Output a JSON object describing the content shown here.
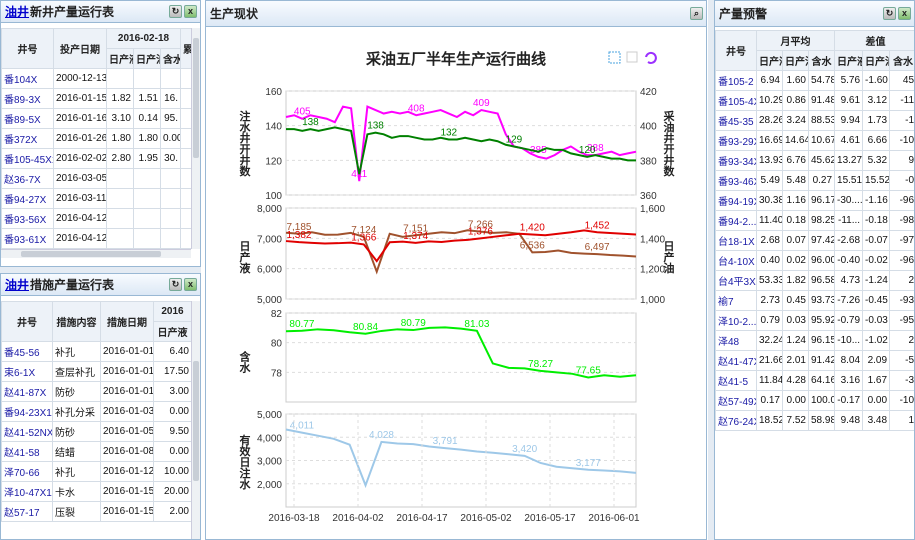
{
  "left_top": {
    "title_link": "油井",
    "title_rest": "新井产量运行表",
    "hdr_well": "井号",
    "hdr_date": "投产日期",
    "hdr_group": "2016-02-18",
    "hdr_daily1": "日产液",
    "hdr_daily2": "日产油",
    "hdr_water": "含水",
    "hdr_cut": "累",
    "rows": [
      [
        "番104X",
        "2000-12-13",
        "",
        "",
        ""
      ],
      [
        "番89-3X",
        "2016-01-15",
        "1.82",
        "1.51",
        "16."
      ],
      [
        "番89-5X",
        "2016-01-16",
        "3.10",
        "0.14",
        "95."
      ],
      [
        "番372X",
        "2016-01-26",
        "1.80",
        "1.80",
        "0.00"
      ],
      [
        "番105-45X1",
        "2016-02-02",
        "2.80",
        "1.95",
        "30."
      ],
      [
        "赵36-7X",
        "2016-03-05",
        "",
        "",
        ""
      ],
      [
        "番94-27X",
        "2016-03-11",
        "",
        "",
        ""
      ],
      [
        "番93-56X",
        "2016-04-12",
        "",
        "",
        ""
      ],
      [
        "番93-61X",
        "2016-04-12",
        "",
        "",
        ""
      ]
    ]
  },
  "left_bottom": {
    "title_link": "油井",
    "title_rest": "措施产量运行表",
    "hdr_well": "井号",
    "hdr_measure": "措施内容",
    "hdr_date": "措施日期",
    "hdr_group": "2016",
    "hdr_daily": "日产液",
    "rows": [
      [
        "番45-56",
        "补孔",
        "2016-01-01",
        "6.40"
      ],
      [
        "束6-1X",
        "查层补孔",
        "2016-01-01",
        "17.50"
      ],
      [
        "赵41-87X",
        "防砂",
        "2016-01-01",
        "3.00"
      ],
      [
        "番94-23X1",
        "补孔分采",
        "2016-01-03",
        "0.00"
      ],
      [
        "赵41-52NX",
        "防砂",
        "2016-01-05",
        "9.50"
      ],
      [
        "赵41-58",
        "结蜡",
        "2016-01-08",
        "0.00"
      ],
      [
        "泽70-66",
        "补孔",
        "2016-01-12",
        "10.00"
      ],
      [
        "泽10-47X1",
        "卡水",
        "2016-01-15",
        "20.00"
      ],
      [
        "赵57-17",
        "压裂",
        "2016-01-15",
        "2.00"
      ]
    ]
  },
  "center": {
    "panel_title": "生产现状",
    "chart_title": "采油五厂半年生产运行曲线"
  },
  "right": {
    "title": "产量预警",
    "hdr_well": "井号",
    "hdr_avg": "月平均",
    "hdr_diff": "差值",
    "hdr_liq": "日产液",
    "hdr_oil": "日产油",
    "hdr_water": "含水",
    "rows": [
      [
        "番105-2",
        "6.94",
        "1.60",
        "54.78",
        "5.76",
        "-1.60",
        "45"
      ],
      [
        "番105-4X",
        "10.29",
        "0.86",
        "91.48",
        "9.61",
        "3.12",
        "-11"
      ],
      [
        "番45-35",
        "28.26",
        "3.24",
        "88.53",
        "9.94",
        "1.73",
        "-1"
      ],
      [
        "番93-29X",
        "16.69",
        "14.64",
        "10.67",
        "4.61",
        "6.66",
        "-10"
      ],
      [
        "番93-34X",
        "13.93",
        "6.76",
        "45.62",
        "13.27",
        "5.32",
        "9"
      ],
      [
        "番93-46X",
        "5.49",
        "5.48",
        "0.27",
        "15.51",
        "15.52",
        "-0"
      ],
      [
        "番94-19X",
        "30.38",
        "1.16",
        "96.17",
        "-30....",
        "-1.16",
        "-96"
      ],
      [
        "番94-2...",
        "11.40",
        "0.18",
        "98.25",
        "-11...",
        "-0.18",
        "-98"
      ],
      [
        "台18-1X",
        "2.68",
        "0.07",
        "97.42",
        "-2.68",
        "-0.07",
        "-97"
      ],
      [
        "台4-10X",
        "0.40",
        "0.02",
        "96.00",
        "-0.40",
        "-0.02",
        "-96"
      ],
      [
        "台4平3X",
        "53.33",
        "1.82",
        "96.58",
        "4.73",
        "-1.24",
        "2"
      ],
      [
        "褕7",
        "2.73",
        "0.45",
        "93.73",
        "-7.26",
        "-0.45",
        "-93"
      ],
      [
        "泽10-2...",
        "0.79",
        "0.03",
        "95.92",
        "-0.79",
        "-0.03",
        "-95"
      ],
      [
        "泽48",
        "32.24",
        "1.24",
        "96.15",
        "-10...",
        "-1.02",
        "2"
      ],
      [
        "赵41-47X",
        "21.66",
        "2.01",
        "91.42",
        "8.04",
        "2.09",
        "-5"
      ],
      [
        "赵41-5",
        "11.84",
        "4.28",
        "64.16",
        "3.16",
        "1.67",
        "-3"
      ],
      [
        "赵57-49X",
        "0.17",
        "0.00",
        "100.00",
        "-0.17",
        "0.00",
        "-10"
      ],
      [
        "赵76-24X",
        "18.52",
        "7.52",
        "58.98",
        "9.48",
        "3.48",
        "1"
      ]
    ]
  },
  "chart_data": [
    {
      "type": "line",
      "ylabel_left": "注水井开井数",
      "ylabel_right": "采油井开井数",
      "ylim_left": [
        100,
        160
      ],
      "ylim_right": [
        360,
        420
      ],
      "yticks_left": [
        "160",
        "140",
        "120",
        "100"
      ],
      "yticks_right": [
        "420",
        "400",
        "380",
        "360"
      ],
      "series": [
        {
          "color": "#ff00ff",
          "axis": "right",
          "labels": [
            "405",
            "411",
            "408",
            "409",
            "385",
            "388"
          ],
          "values": [
            405,
            406,
            404,
            406,
            405,
            404,
            402,
            411,
            410,
            368,
            411,
            409,
            407,
            408,
            407,
            408,
            406,
            407,
            408,
            409,
            407,
            405,
            408,
            406,
            409,
            408,
            407,
            395,
            388,
            387,
            384,
            382,
            381,
            383,
            386,
            388,
            385,
            383,
            383,
            384,
            385,
            383,
            384,
            385
          ]
        },
        {
          "color": "#008000",
          "axis": "left",
          "labels": [
            "138",
            "138",
            "132",
            "129",
            "120"
          ],
          "values": [
            138,
            138,
            137,
            138,
            137,
            138,
            139,
            138,
            137,
            112,
            135,
            136,
            135,
            133,
            134,
            134,
            133,
            132,
            132,
            133,
            132,
            132,
            133,
            132,
            131,
            132,
            131,
            129,
            128,
            127,
            126,
            125,
            127,
            126,
            126,
            124,
            123,
            122,
            123,
            122,
            121,
            121,
            120,
            120
          ]
        }
      ]
    },
    {
      "type": "line",
      "ylabel_left": "日产液",
      "ylabel_right": "日产油",
      "ylim_left": [
        5000,
        8000
      ],
      "ylim_right": [
        1000,
        1600
      ],
      "yticks_left": [
        "8,000",
        "7,000",
        "6,000",
        "5,000"
      ],
      "yticks_right": [
        "1,600",
        "1,400",
        "1,200",
        "1,000"
      ],
      "series": [
        {
          "color": "#a0522d",
          "axis": "left",
          "labels": [
            "7,185",
            "7,124",
            "7,151",
            "7,266",
            "6,536",
            "6,497"
          ],
          "values": [
            7185,
            7150,
            7200,
            7120,
            7124,
            7180,
            7050,
            5900,
            7151,
            7050,
            7100,
            7150,
            7200,
            7170,
            7266,
            7220,
            7180,
            7200,
            7150,
            6536,
            6550,
            6600,
            6520,
            6497,
            6480,
            6450,
            6430,
            6400
          ]
        },
        {
          "color": "#e00000",
          "axis": "right",
          "labels": [
            "1,382",
            "1,366",
            "1,374",
            "1,376",
            "1,420",
            "1,452"
          ],
          "values": [
            1382,
            1375,
            1370,
            1366,
            1368,
            1372,
            1360,
            1250,
            1374,
            1378,
            1370,
            1380,
            1376,
            1385,
            1390,
            1400,
            1410,
            1420,
            1430,
            1425,
            1420,
            1430,
            1440,
            1452,
            1440,
            1435,
            1430,
            1425
          ]
        }
      ]
    },
    {
      "type": "line",
      "ylabel_left": "含水",
      "ylim": [
        76,
        82
      ],
      "yticks": [
        "82",
        "80",
        "78"
      ],
      "series": [
        {
          "color": "#00ee00",
          "labels": [
            "80.77",
            "80.84",
            "80.79",
            "81.03",
            "78.27",
            "77.65"
          ],
          "values": [
            80.77,
            80.8,
            80.9,
            80.84,
            80.7,
            80.6,
            80.79,
            80.9,
            80.85,
            81.0,
            81.03,
            80.95,
            80.8,
            78.6,
            78.3,
            78.27,
            78.1,
            78.0,
            77.9,
            77.65,
            77.8,
            77.7,
            77.8
          ]
        }
      ]
    },
    {
      "type": "line",
      "ylabel_left": "有效日注水",
      "ylim": [
        2000,
        5000
      ],
      "yticks": [
        "5,000",
        "4,000",
        "3,000",
        "2,000"
      ],
      "xticks": [
        "2016-03-18",
        "2016-04-02",
        "2016-04-17",
        "2016-05-02",
        "2016-05-17",
        "2016-06-01"
      ],
      "series": [
        {
          "color": "#9ec8e8",
          "labels": [
            "4,011",
            "4,028",
            "3,791",
            "3,420",
            "3,177"
          ],
          "values": [
            4500,
            4400,
            4300,
            4200,
            4011,
            2700,
            4100,
            4050,
            4028,
            3950,
            3900,
            3850,
            3791,
            3750,
            3700,
            3650,
            3420,
            3300,
            3250,
            3200,
            3177,
            3150,
            3100
          ]
        }
      ]
    }
  ]
}
